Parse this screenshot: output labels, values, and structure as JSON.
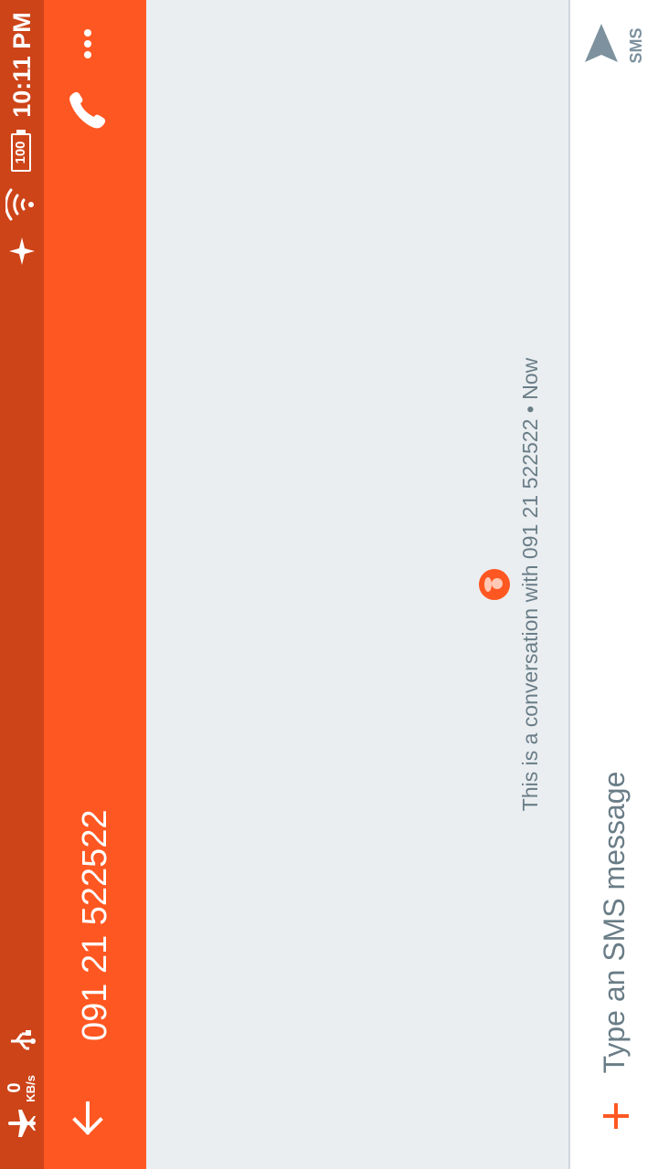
{
  "status_bar": {
    "time": "10:11 PM",
    "battery": "100",
    "net_speed_value": "0",
    "net_speed_unit": "KB/s",
    "icons": [
      "bluetooth-icon",
      "wifi-icon",
      "battery-icon",
      "usb-icon",
      "airplane-mode-icon"
    ]
  },
  "app_bar": {
    "title": "091 21 522522",
    "back_icon": "arrow-back-icon",
    "call_icon": "phone-icon",
    "menu_icon": "more-vert-icon",
    "color": "#ff5722"
  },
  "conversation": {
    "info_text": "This is a conversation with 091 21 522522 • Now",
    "avatar_color": "#ff5722"
  },
  "composer": {
    "placeholder": "Type an SMS message",
    "send_label": "SMS",
    "attach_icon": "plus-icon",
    "send_icon": "send-icon"
  }
}
